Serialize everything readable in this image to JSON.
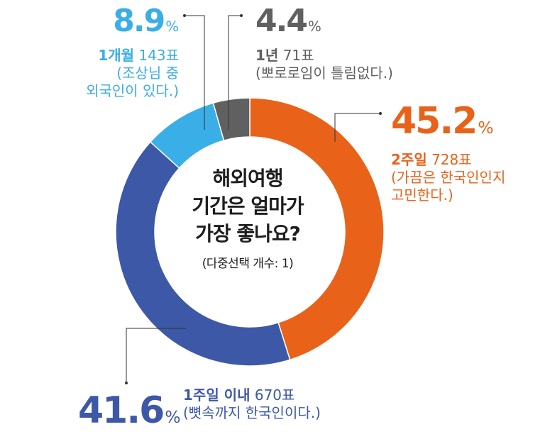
{
  "chart_data": {
    "type": "donut",
    "title": "해외여행 기간은 얼마가 가장 좋나요?",
    "title_lines": [
      "해외여행",
      "기간은 얼마가",
      "가장 좋나요?"
    ],
    "subtitle": "(다중선택 개수: 1)",
    "slices": [
      {
        "name": "2주일",
        "percent": 45.2,
        "percent_text": "45.2",
        "count_text": "728표",
        "note": [
          "(가끔은 한국인인지",
          "고민한다.)"
        ],
        "color": "#e8621a"
      },
      {
        "name": "1주일 이내",
        "percent": 41.6,
        "percent_text": "41.6",
        "count_text": "670표",
        "note": [
          "(뼛속까지 한국인이다.)"
        ],
        "color": "#3e58a8"
      },
      {
        "name": "1개월",
        "percent": 8.9,
        "percent_text": "8.9",
        "count_text": "143표",
        "note": [
          "(조상님 중",
          "외국인이 있다.)"
        ],
        "color": "#3aaee6"
      },
      {
        "name": "1년",
        "percent": 4.4,
        "percent_text": "4.4",
        "count_text": "71표",
        "note": [
          "(뽀로로임이 틀림없다.)"
        ],
        "color": "#606060"
      }
    ],
    "percent_unit": "%",
    "start": "top",
    "direction": "clockwise"
  }
}
